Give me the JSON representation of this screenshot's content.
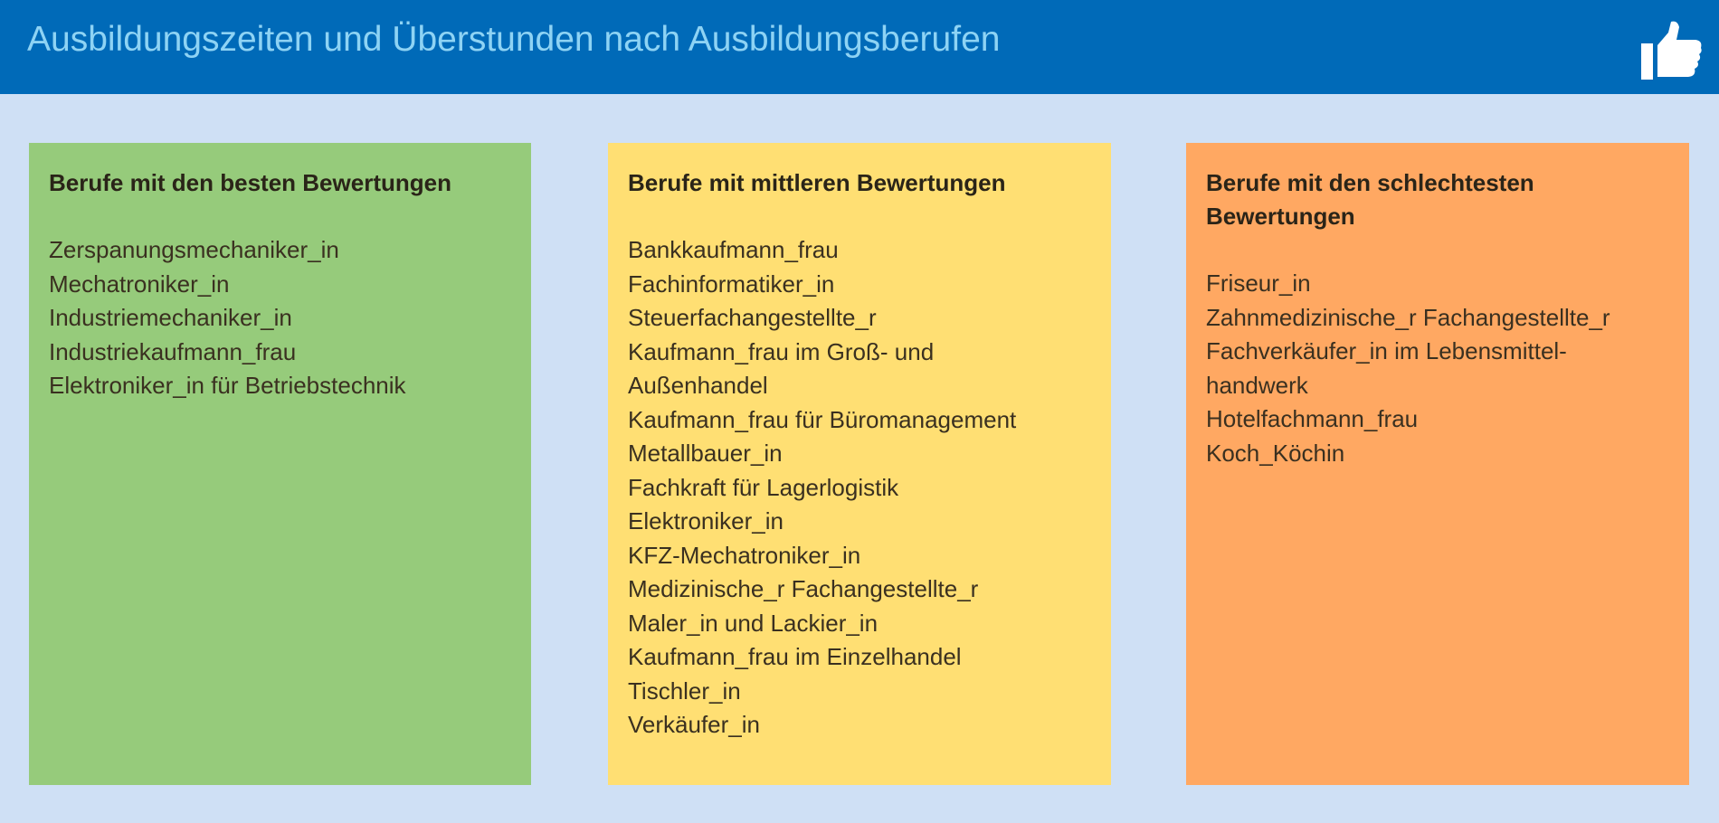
{
  "header": {
    "title": "Ausbildungszeiten und Überstunden nach Ausbildungsberufen",
    "icon": "thumbs-up-icon",
    "background": "#006ab8",
    "title_color": "#8ed3f4"
  },
  "columns": [
    {
      "heading": "Berufe mit den besten Bewertungen",
      "color": "#96cb7b",
      "items": [
        "Zerspanungsmechaniker_in",
        "Mechatroniker_in",
        "Industriemechaniker_in",
        "Industriekaufmann_frau",
        "Elektroniker_in für Betriebstechnik"
      ]
    },
    {
      "heading": "Berufe mit mittleren Bewertungen",
      "color": "#ffdf73",
      "items": [
        "Bankkaufmann_frau",
        "Fachinformatiker_in",
        "Steuerfachangestellte_r",
        "Kaufmann_frau im Groß- und",
        "Außenhandel",
        "Kaufmann_frau für Büromanagement",
        "Metallbauer_in",
        "Fachkraft für Lagerlogistik",
        "Elektroniker_in",
        "KFZ-Mechatroniker_in",
        "Medizinische_r Fachangestellte_r",
        "Maler_in und Lackier_in",
        "Kaufmann_frau im Einzelhandel",
        "Tischler_in",
        "Verkäufer_in"
      ]
    },
    {
      "heading": "Berufe mit den schlechtesten Bewertungen",
      "color": "#ffa862",
      "items": [
        "Friseur_in",
        "Zahnmedizinische_r Fachangestellte_r",
        "Fachverkäufer_in im Lebensmittel-",
        "handwerk",
        "Hotelfachmann_frau",
        "Koch_Köchin"
      ]
    }
  ]
}
